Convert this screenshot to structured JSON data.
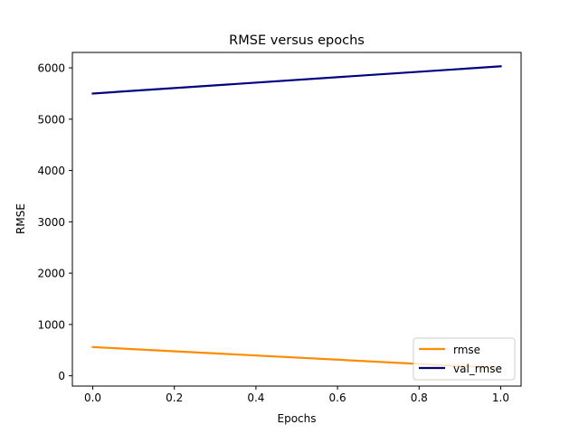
{
  "chart_data": {
    "type": "line",
    "title": "RMSE versus epochs",
    "xlabel": "Epochs",
    "ylabel": "RMSE",
    "xlim": [
      -0.05,
      1.05
    ],
    "ylim": [
      -200,
      6300
    ],
    "xticks": [
      0.0,
      0.2,
      0.4,
      0.6,
      0.8,
      1.0
    ],
    "xtick_labels": [
      "0.0",
      "0.2",
      "0.4",
      "0.6",
      "0.8",
      "1.0"
    ],
    "yticks": [
      0,
      1000,
      2000,
      3000,
      4000,
      5000,
      6000
    ],
    "ytick_labels": [
      "0",
      "1000",
      "2000",
      "3000",
      "4000",
      "5000",
      "6000"
    ],
    "grid": false,
    "legend_position": "lower-right",
    "series": [
      {
        "name": "rmse",
        "color": "#ff8c00",
        "x": [
          0,
          1
        ],
        "y": [
          560,
          150
        ]
      },
      {
        "name": "val_rmse",
        "color": "#000080",
        "x": [
          0,
          1
        ],
        "y": [
          5500,
          6030
        ]
      }
    ]
  }
}
